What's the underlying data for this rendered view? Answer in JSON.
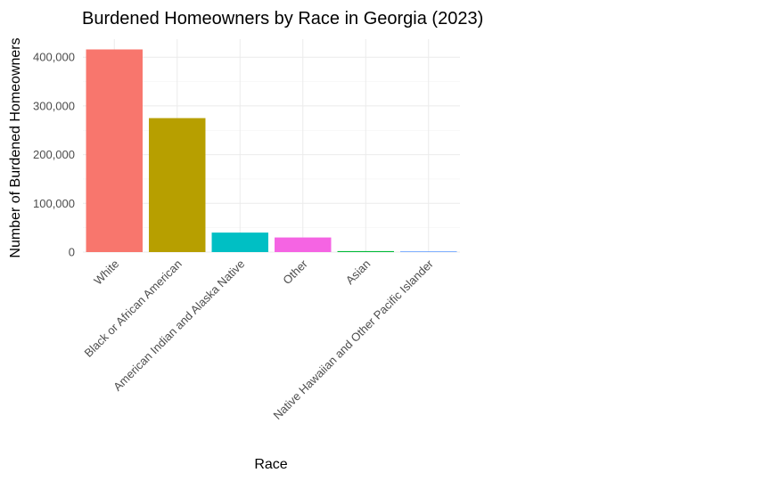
{
  "chart_data": {
    "type": "bar",
    "title": "Burdened Homeowners by Race in Georgia (2023)",
    "xlabel": "Race",
    "ylabel": "Number of Burdened Homeowners",
    "categories": [
      "White",
      "Black or African American",
      "American Indian and Alaska Native",
      "Other",
      "Asian",
      "Native Hawaiian and Other Pacific Islander"
    ],
    "values": [
      416000,
      275000,
      40000,
      30000,
      2000,
      300
    ],
    "colors": [
      "#F8766D",
      "#B79F00",
      "#00BFC4",
      "#F564E3",
      "#00BA38",
      "#619CFF"
    ],
    "ylim": [
      0,
      437000
    ],
    "yticks": [
      0,
      100000,
      200000,
      300000,
      400000
    ],
    "ytick_labels": [
      "0",
      "100,000",
      "200,000",
      "300,000",
      "400,000"
    ],
    "grid": true,
    "legend": "none"
  }
}
